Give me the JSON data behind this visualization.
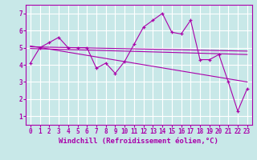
{
  "background_color": "#c8e8e8",
  "grid_color": "#ffffff",
  "line_color": "#aa00aa",
  "xlabel": "Windchill (Refroidissement éolien,°C)",
  "xlim": [
    -0.5,
    23.5
  ],
  "ylim": [
    0.5,
    7.5
  ],
  "xticks": [
    0,
    1,
    2,
    3,
    4,
    5,
    6,
    7,
    8,
    9,
    10,
    11,
    12,
    13,
    14,
    15,
    16,
    17,
    18,
    19,
    20,
    21,
    22,
    23
  ],
  "yticks": [
    1,
    2,
    3,
    4,
    5,
    6,
    7
  ],
  "series_main": {
    "x": [
      0,
      1,
      2,
      3,
      4,
      5,
      6,
      7,
      8,
      9,
      10,
      11,
      12,
      13,
      14,
      15,
      16,
      17,
      18,
      19,
      20,
      21,
      22,
      23
    ],
    "y": [
      4.1,
      5.0,
      5.3,
      5.6,
      5.0,
      5.0,
      5.0,
      3.8,
      4.1,
      3.5,
      4.2,
      5.2,
      6.2,
      6.6,
      7.0,
      5.9,
      5.8,
      6.6,
      4.3,
      4.3,
      4.6,
      3.0,
      1.3,
      2.6
    ]
  },
  "trend_lines": [
    {
      "x": [
        0,
        23
      ],
      "y": [
        5.1,
        3.0
      ]
    },
    {
      "x": [
        0,
        23
      ],
      "y": [
        5.05,
        4.8
      ]
    },
    {
      "x": [
        0,
        23
      ],
      "y": [
        4.95,
        4.6
      ]
    }
  ],
  "font_size_xlabel": 6.5,
  "font_size_tick": 5.5,
  "marker_size": 3.5,
  "linewidth": 0.8
}
